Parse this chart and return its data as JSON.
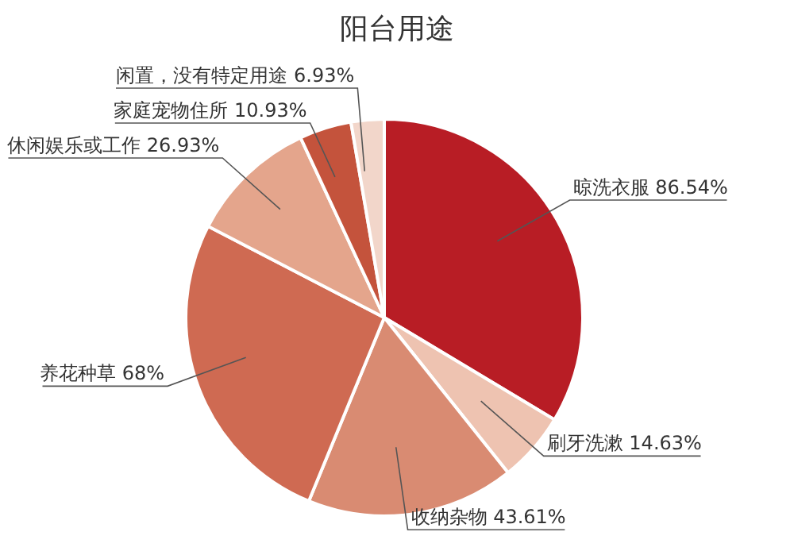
{
  "chart_data": {
    "type": "pie",
    "title": "阳台用途",
    "categories": [
      "晾洗衣服",
      "刷牙洗漱",
      "收纳杂物",
      "养花种草",
      "休闲娱乐或工作",
      "家庭宠物住所",
      "闲置，没有特定用途"
    ],
    "values": [
      86.54,
      14.63,
      43.61,
      68,
      26.93,
      10.93,
      6.93
    ],
    "value_labels": [
      "86.54%",
      "14.63%",
      "43.61%",
      "68%",
      "26.93%",
      "10.93%",
      "6.93%"
    ],
    "colors": [
      "#b81d25",
      "#eec3b1",
      "#d98b72",
      "#cf6a52",
      "#e4a58c",
      "#c4533c",
      "#f2d6ca"
    ],
    "legend": false
  }
}
